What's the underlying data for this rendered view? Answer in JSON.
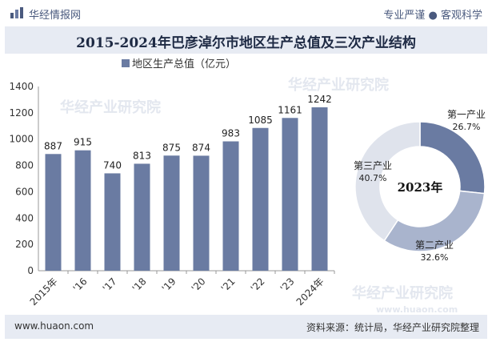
{
  "header": {
    "brand": "华经情报网",
    "tagline": "专业严谨 ● 客观科学",
    "title": "2015-2024年巴彦淖尔市地区生产总值及三次产业结构"
  },
  "footer": {
    "url": "www.huaon.com",
    "source": "资料来源：统计局，华经产业研究院整理"
  },
  "watermarks": [
    "华经产业研究院",
    "华经产业研究院",
    "华经产业研究院",
    "www.huaon.com"
  ],
  "chart_data": [
    {
      "type": "bar",
      "categories": [
        "2015年",
        "'16",
        "'17",
        "'18",
        "'19",
        "'20",
        "'21",
        "'22",
        "'23",
        "2024年"
      ],
      "series": [
        {
          "name": "地区生产总值（亿元）",
          "values": [
            887,
            915,
            740,
            813,
            875,
            874,
            983,
            1085,
            1161,
            1242
          ]
        }
      ],
      "y_ticks": [
        "0",
        "200",
        "400",
        "600",
        "800",
        "1000",
        "1200",
        "1400"
      ],
      "ylim": [
        0,
        1400
      ],
      "legend": "top",
      "bar_color": "#6a7ba2"
    },
    {
      "type": "pie",
      "center_label": "2023年",
      "slices": [
        {
          "name": "第一产业",
          "value": 26.7,
          "label": "26.7%",
          "color": "#6a7ba2"
        },
        {
          "name": "第二产业",
          "value": 32.6,
          "label": "32.6%",
          "color": "#a9b4cd"
        },
        {
          "name": "第三产业",
          "value": 40.7,
          "label": "40.7%",
          "color": "#dfe3ec"
        }
      ]
    }
  ]
}
